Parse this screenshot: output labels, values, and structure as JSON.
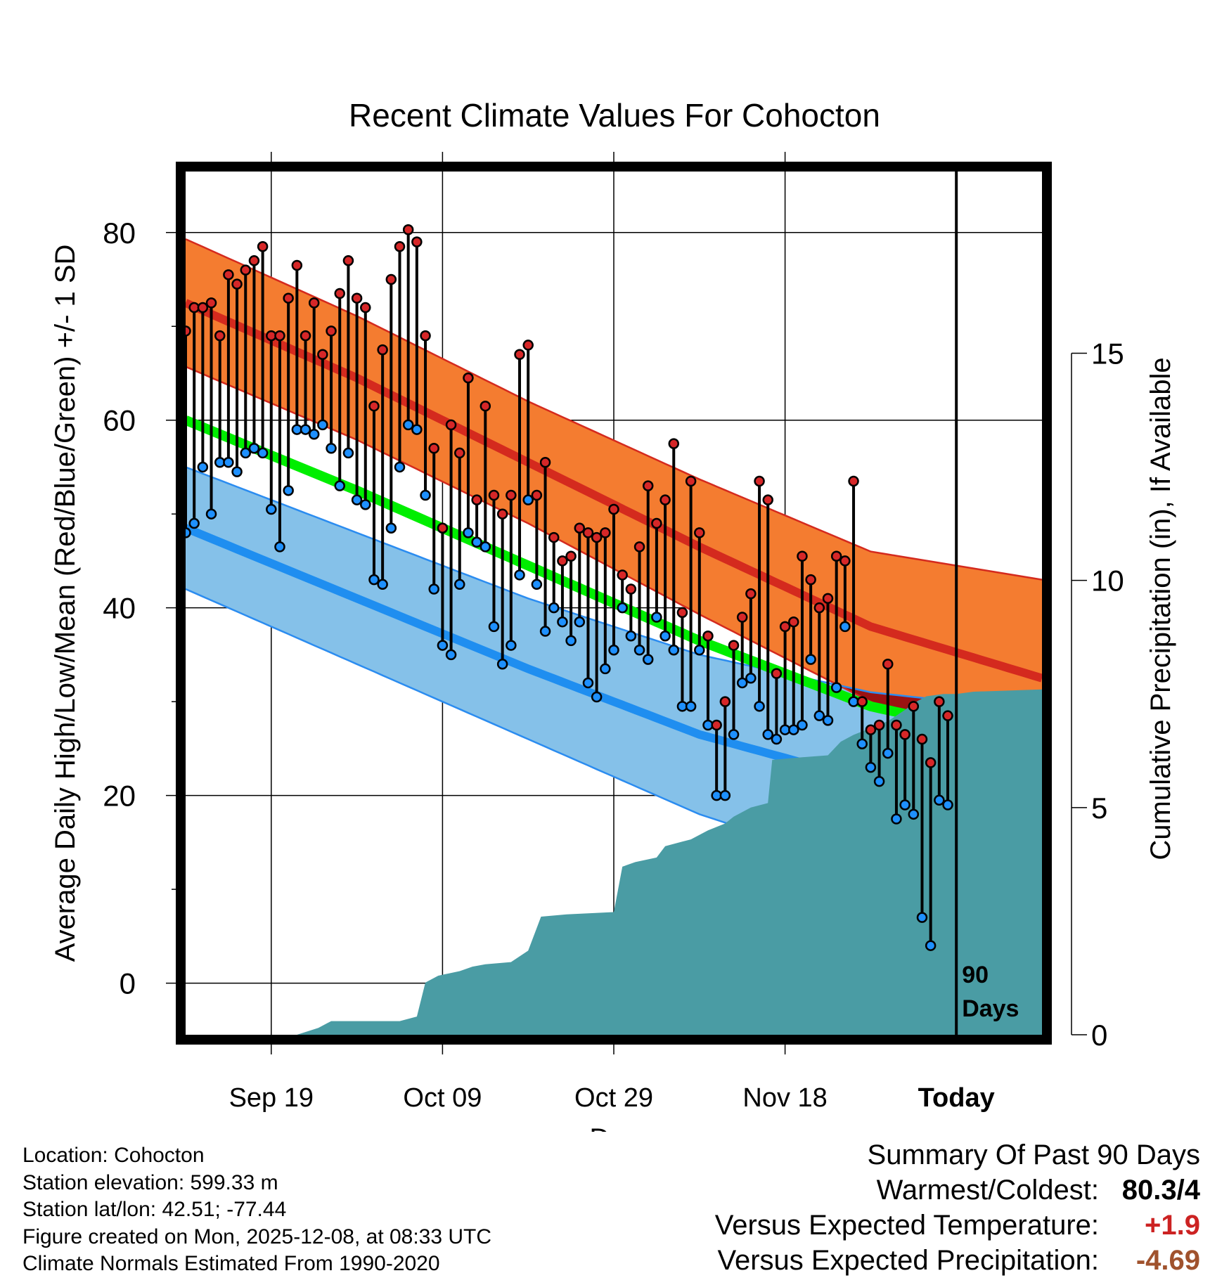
{
  "title": "Recent Climate Values For Cohocton",
  "chart_data": {
    "type": "line",
    "title": "Recent Climate Values For Cohocton",
    "xlabel": "Day",
    "ylabel": "Average Daily High/Low/Mean (Red/Blue/Green) +/- 1 SD",
    "y2label": "Cumulative Precipitation (in), If Available",
    "ylim": [
      -5.5,
      86.5
    ],
    "y2lim": [
      0,
      19
    ],
    "yticks": [
      0,
      20,
      40,
      60,
      80
    ],
    "y2ticks": [
      0,
      5,
      10,
      15
    ],
    "x_range": [
      0,
      100
    ],
    "xticks": [
      {
        "label": "Sep 19",
        "day": 10
      },
      {
        "label": "Oct 09",
        "day": 30
      },
      {
        "label": "Oct 29",
        "day": 50
      },
      {
        "label": "Nov 18",
        "day": 70
      },
      {
        "label": "Today",
        "day": 90
      }
    ],
    "today_day": 90,
    "today_label_line1": "90",
    "today_label_line2": "Days",
    "normals": {
      "days": [
        0,
        20,
        40,
        60,
        80,
        100
      ],
      "high_mean": [
        72.5,
        64.5,
        55.5,
        46.5,
        38,
        32.5
      ],
      "high_sd": [
        6.8,
        6.6,
        6.5,
        7.2,
        8.0,
        10.5
      ],
      "low_mean": [
        48.5,
        41,
        33.5,
        26.5,
        21.5,
        18
      ],
      "low_sd": [
        6.5,
        7,
        7.5,
        8.5,
        9.5,
        11
      ],
      "mean_mean": [
        60,
        52.5,
        44.5,
        36.5,
        29.5,
        25.5
      ]
    },
    "series": [
      {
        "name": "Daily High",
        "color": "#d62728",
        "values": [
          69.5,
          72,
          72,
          72.5,
          69,
          75.5,
          74.5,
          76,
          77,
          78.5,
          69,
          69,
          73,
          76.5,
          69,
          72.5,
          67,
          69.5,
          73.5,
          77,
          73,
          72,
          61.5,
          67.5,
          75,
          78.5,
          80.3,
          79,
          69,
          57,
          48.5,
          59.5,
          56.5,
          64.5,
          51.5,
          61.5,
          52,
          50,
          52,
          67,
          68,
          52,
          55.5,
          47.5,
          45,
          45.5,
          48.5,
          48,
          47.5,
          48,
          50.5,
          43.5,
          42,
          46.5,
          53,
          49,
          51.5,
          57.5,
          39.5,
          53.5,
          48,
          37,
          27.5,
          30,
          36,
          39,
          41.5,
          53.5,
          51.5,
          33,
          38,
          38.5,
          45.5,
          43,
          40,
          41,
          45.5,
          45,
          53.5,
          30,
          27,
          27.5,
          34,
          27.5,
          26.5,
          29.5,
          26,
          23.5,
          30,
          28.5
        ]
      },
      {
        "name": "Daily Low",
        "color": "#1e90ff",
        "values": [
          48,
          49,
          55,
          50,
          55.5,
          55.5,
          54.5,
          56.5,
          57,
          56.5,
          50.5,
          46.5,
          52.5,
          59,
          59,
          58.5,
          59.5,
          57,
          53,
          56.5,
          51.5,
          51,
          43,
          42.5,
          48.5,
          55,
          59.5,
          59,
          52,
          42,
          36,
          35,
          42.5,
          48,
          47,
          46.5,
          38,
          34,
          36,
          43.5,
          51.5,
          42.5,
          37.5,
          40,
          38.5,
          36.5,
          38.5,
          32,
          30.5,
          33.5,
          35.5,
          40,
          37,
          35.5,
          34.5,
          39,
          37,
          35.5,
          29.5,
          29.5,
          35.5,
          27.5,
          20,
          20,
          26.5,
          32,
          32.5,
          29.5,
          26.5,
          26,
          27,
          27,
          27.5,
          34.5,
          28.5,
          28,
          31.5,
          38,
          30,
          25.5,
          23,
          21.5,
          24.5,
          17.5,
          19,
          18,
          7,
          4,
          19.5,
          19
        ]
      }
    ],
    "precipitation": {
      "name": "Cumulative Precipitation",
      "color": "#4a9ca4",
      "days": [
        13,
        15.5,
        16.5,
        17,
        20,
        25,
        27,
        28,
        29.5,
        32,
        33.5,
        35,
        38,
        40,
        41.5,
        44.5,
        50,
        51,
        52.5,
        55,
        56,
        58,
        59,
        61,
        63,
        64,
        66,
        68,
        68.5,
        71.5,
        75,
        76.5,
        78,
        80,
        82,
        84,
        85.5,
        86.5,
        88.5,
        90,
        92,
        100
      ],
      "values": [
        0,
        0.15,
        0.25,
        0.3,
        0.3,
        0.3,
        0.4,
        1.15,
        1.3,
        1.4,
        1.5,
        1.55,
        1.6,
        1.85,
        2.6,
        2.65,
        2.7,
        3.7,
        3.8,
        3.9,
        4.15,
        4.25,
        4.3,
        4.5,
        4.65,
        4.8,
        5.0,
        5.1,
        6.05,
        6.1,
        6.15,
        6.45,
        6.6,
        6.75,
        6.9,
        7.15,
        7.35,
        7.45,
        7.5,
        7.5,
        7.55,
        7.6
      ]
    }
  },
  "info": {
    "location": "Location: Cohocton",
    "elevation": "Station elevation: 599.33 m",
    "latlon": "Station lat/lon: 42.51; -77.44",
    "created": "Figure created on Mon, 2025-12-08, at 08:33 UTC",
    "normals_period": "Climate Normals Estimated From 1990-2020"
  },
  "summary": {
    "heading": "Summary Of Past 90 Days",
    "warmest_coldest_label": "Warmest/Coldest:",
    "warmest_coldest_value": "80.3/4",
    "temp_label": "Versus Expected Temperature:",
    "temp_value": "+1.9",
    "precip_label": "Versus Expected Precipitation:",
    "precip_value": "-4.69"
  }
}
